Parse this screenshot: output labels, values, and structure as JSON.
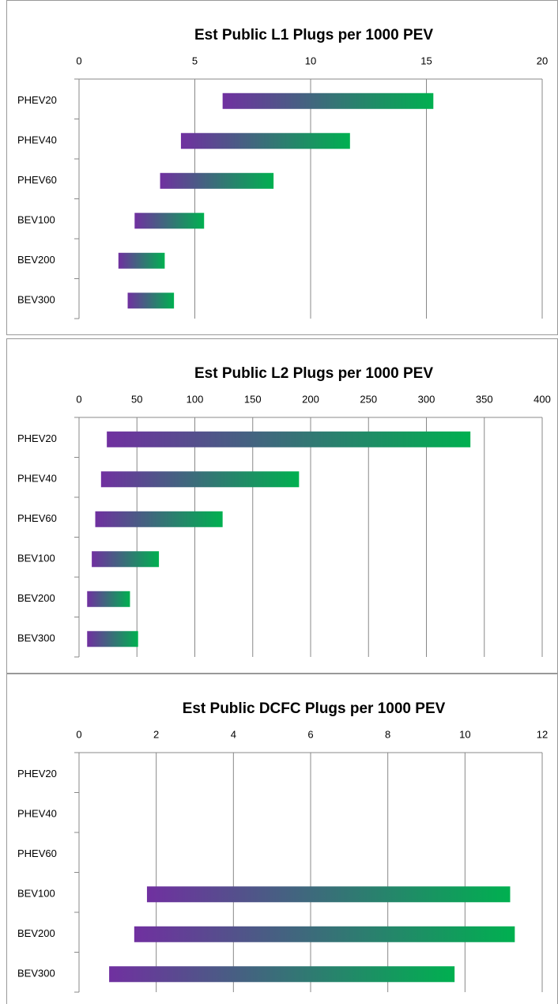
{
  "chart_data": [
    {
      "type": "bar",
      "orientation": "horizontal",
      "title": "Est Public L1 Plugs per 1000 PEV",
      "categories": [
        "PHEV20",
        "PHEV40",
        "PHEV60",
        "BEV100",
        "BEV200",
        "BEV300"
      ],
      "low": [
        6.2,
        4.4,
        3.5,
        2.4,
        1.7,
        2.1
      ],
      "high": [
        15.3,
        11.7,
        8.4,
        5.4,
        3.7,
        4.1
      ],
      "color_from": "#7030a0",
      "color_to": "#00b050",
      "xlim": [
        0,
        20
      ],
      "xticks": [
        0,
        5,
        10,
        15,
        20
      ],
      "grid": true
    },
    {
      "type": "bar",
      "orientation": "horizontal",
      "title": "Est Public L2 Plugs per 1000 PEV",
      "categories": [
        "PHEV20",
        "PHEV40",
        "PHEV60",
        "BEV100",
        "BEV200",
        "BEV300"
      ],
      "low": [
        24,
        19,
        14,
        11,
        7,
        7
      ],
      "high": [
        338,
        190,
        124,
        69,
        44,
        51
      ],
      "color_from": "#7030a0",
      "color_to": "#00b050",
      "xlim": [
        0,
        400
      ],
      "xticks": [
        0,
        50,
        100,
        150,
        200,
        250,
        300,
        350,
        400
      ],
      "grid": true
    },
    {
      "type": "bar",
      "orientation": "horizontal",
      "title": "Est Public DCFC Plugs per 1000 PEV",
      "categories": [
        "PHEV20",
        "PHEV40",
        "PHEV60",
        "BEV100",
        "BEV200",
        "BEV300"
      ],
      "low": [
        null,
        null,
        null,
        1.76,
        1.43,
        0.78
      ],
      "high": [
        null,
        null,
        null,
        11.17,
        11.29,
        9.73
      ],
      "color_from": "#7030a0",
      "color_to": "#00b050",
      "xlim": [
        0,
        12
      ],
      "xticks": [
        0,
        2,
        4,
        6,
        8,
        10,
        12
      ],
      "grid": true
    }
  ]
}
